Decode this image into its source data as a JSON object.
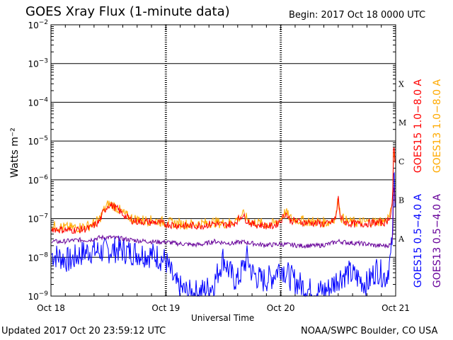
{
  "header": {
    "title": "GOES Xray Flux (1-minute data)",
    "begin": "Begin:  2017 Oct 18 0000 UTC"
  },
  "footer": {
    "updated": "Updated 2017 Oct 20 23:59:12 UTC",
    "credit": "NOAA/SWPC Boulder, CO USA"
  },
  "chart_data": {
    "type": "line",
    "xlabel": "Universal Time",
    "ylabel": "Watts m⁻²",
    "yscale": "log",
    "ylim": [
      1e-09,
      0.01
    ],
    "xlim": [
      0,
      72
    ],
    "x_unit": "hours since 2017 Oct 18 0000 UTC",
    "x_ticks": [
      {
        "x": 0,
        "label": "Oct 18"
      },
      {
        "x": 24,
        "label": "Oct 19"
      },
      {
        "x": 48,
        "label": "Oct 20"
      },
      {
        "x": 72,
        "label": "Oct 21"
      }
    ],
    "y_ticks": [
      {
        "value": 1e-09,
        "base": "10",
        "exp": "−9"
      },
      {
        "value": 1e-08,
        "base": "10",
        "exp": "−8"
      },
      {
        "value": 1e-07,
        "base": "10",
        "exp": "−7"
      },
      {
        "value": 1e-06,
        "base": "10",
        "exp": "−6"
      },
      {
        "value": 1e-05,
        "base": "10",
        "exp": "−5"
      },
      {
        "value": 0.0001,
        "base": "10",
        "exp": "−4"
      },
      {
        "value": 0.001,
        "base": "10",
        "exp": "−3"
      },
      {
        "value": 0.01,
        "base": "10",
        "exp": "−2"
      }
    ],
    "flare_classes": [
      {
        "label": "A",
        "value": 1e-08
      },
      {
        "label": "B",
        "value": 1e-07
      },
      {
        "label": "C",
        "value": 1e-06
      },
      {
        "label": "M",
        "value": 1e-05
      },
      {
        "label": "X",
        "value": 0.0001
      }
    ],
    "series": [
      {
        "name": "GOES15 1.0−8.0 A",
        "color": "#ff0000",
        "x": [
          0,
          2,
          4,
          6,
          8,
          10,
          11,
          12,
          13,
          14,
          15,
          16,
          17,
          18,
          20,
          22,
          24,
          26,
          28,
          30,
          32,
          34,
          36,
          38,
          39.5,
          40,
          40.5,
          42,
          44,
          46,
          47,
          48,
          49,
          50,
          52,
          54,
          56,
          58,
          59.5,
          60,
          60.5,
          62,
          64,
          66,
          68,
          70,
          71,
          71.4,
          71.6,
          71.8,
          72
        ],
        "y": [
          5.5e-08,
          5.2e-08,
          5e-08,
          5.2e-08,
          5.6e-08,
          8e-08,
          1.5e-07,
          2.3e-07,
          2.1e-07,
          1.7e-07,
          1.3e-07,
          1.05e-07,
          9e-08,
          8.5e-08,
          8.2e-08,
          8e-08,
          7.2e-08,
          6.8e-08,
          6.5e-08,
          6.5e-08,
          6.7e-08,
          7.5e-08,
          6.8e-08,
          7.2e-08,
          1.05e-07,
          1.3e-07,
          1e-07,
          7.2e-08,
          6.8e-08,
          6.3e-08,
          7e-08,
          9e-08,
          1.4e-07,
          9e-08,
          8.2e-08,
          7.8e-08,
          7.5e-08,
          7.2e-08,
          1e-07,
          3.5e-07,
          1e-07,
          7.5e-08,
          7.2e-08,
          7.5e-08,
          7.8e-08,
          8e-08,
          1.3e-07,
          4e-07,
          1.1e-05,
          3e-06,
          2e-06
        ]
      },
      {
        "name": "GOES13 1.0−8.0 A",
        "color": "#ffaa00",
        "x": [
          0,
          2,
          4,
          6,
          8,
          10,
          11,
          12,
          13,
          14,
          15,
          16,
          17,
          18,
          20,
          22,
          24,
          26,
          28,
          30,
          32,
          34,
          36,
          38,
          39.5,
          40,
          40.5,
          42,
          44,
          46,
          47,
          48,
          49,
          50,
          52,
          54,
          56,
          58,
          59.5,
          60,
          60.5,
          62,
          64,
          66,
          68,
          70,
          71,
          71.4,
          71.6,
          71.8,
          72
        ],
        "y": [
          6.5e-08,
          6e-08,
          5.8e-08,
          6e-08,
          6.5e-08,
          9e-08,
          1.6e-07,
          2.4e-07,
          2.2e-07,
          1.8e-07,
          1.4e-07,
          1.15e-07,
          1e-07,
          9.5e-08,
          9e-08,
          8.8e-08,
          8e-08,
          7.5e-08,
          7.2e-08,
          7.2e-08,
          7.5e-08,
          8.2e-08,
          7.5e-08,
          8e-08,
          1.1e-07,
          1.35e-07,
          1.1e-07,
          8e-08,
          7.5e-08,
          7e-08,
          7.8e-08,
          1e-07,
          1.5e-07,
          1e-07,
          9e-08,
          8.5e-08,
          8.2e-08,
          8e-08,
          1.1e-07,
          3.3e-07,
          1.1e-07,
          8.2e-08,
          8e-08,
          8.2e-08,
          8.5e-08,
          8.8e-08,
          1.4e-07,
          4.2e-07,
          9e-06,
          2.8e-06,
          1.8e-06
        ]
      },
      {
        "name": "GOES15 0.5−4.0 A",
        "color": "#0000ff",
        "x": [
          0,
          1,
          2,
          3,
          4,
          6,
          8,
          10,
          12,
          14,
          16,
          18,
          20,
          22,
          24,
          25,
          26,
          27,
          28,
          29,
          30,
          32,
          34,
          36,
          37,
          38,
          39,
          40,
          41,
          42,
          44,
          46,
          48,
          50,
          52,
          54,
          56,
          58,
          60,
          62,
          64,
          66,
          68,
          70,
          71,
          71.4,
          71.6,
          71.8,
          72
        ],
        "y": [
          1.2e-08,
          1.1e-08,
          1e-08,
          9e-09,
          8e-09,
          1.2e-08,
          1.5e-08,
          1.4e-08,
          1.5e-08,
          1.6e-08,
          1.4e-08,
          1.3e-08,
          1.2e-08,
          1.1e-08,
          8e-09,
          4e-09,
          2e-09,
          1.6e-09,
          1.3e-09,
          1.2e-09,
          1.2e-09,
          1.4e-09,
          2e-09,
          1e-08,
          5e-09,
          3e-09,
          2.5e-09,
          5e-09,
          1e-08,
          4e-09,
          2.5e-09,
          3e-09,
          6e-09,
          3e-09,
          2e-09,
          1.4e-09,
          1.3e-09,
          1.5e-09,
          3e-09,
          4e-09,
          3e-09,
          2e-09,
          5e-09,
          3e-09,
          1e-08,
          5e-08,
          2.5e-06,
          5e-07,
          3e-07
        ]
      },
      {
        "name": "GOES13 0.5−4.0 A",
        "color": "#660099",
        "x": [
          0,
          2,
          4,
          6,
          8,
          10,
          12,
          14,
          16,
          18,
          20,
          22,
          24,
          26,
          28,
          30,
          32,
          34,
          36,
          38,
          40,
          42,
          44,
          46,
          48,
          50,
          52,
          54,
          56,
          58,
          60,
          62,
          64,
          66,
          68,
          70,
          71,
          71.4,
          71.6,
          71.8,
          72
        ],
        "y": [
          2.6e-08,
          2.5e-08,
          2.7e-08,
          2.8e-08,
          2.8e-08,
          3.2e-08,
          3.3e-08,
          3.1e-08,
          2.9e-08,
          2.7e-08,
          2.6e-08,
          2.5e-08,
          2.5e-08,
          2.3e-08,
          2.2e-08,
          2.1e-08,
          2.2e-08,
          2.6e-08,
          2.4e-08,
          2.3e-08,
          2.5e-08,
          2.3e-08,
          2.1e-08,
          2.1e-08,
          2.2e-08,
          2.1e-08,
          2e-08,
          2e-08,
          2e-08,
          2.2e-08,
          2.6e-08,
          2.4e-08,
          2.3e-08,
          2.2e-08,
          2e-08,
          2e-08,
          2.1e-08,
          4e-08,
          1.2e-06,
          3e-07,
          2e-07
        ]
      }
    ]
  }
}
